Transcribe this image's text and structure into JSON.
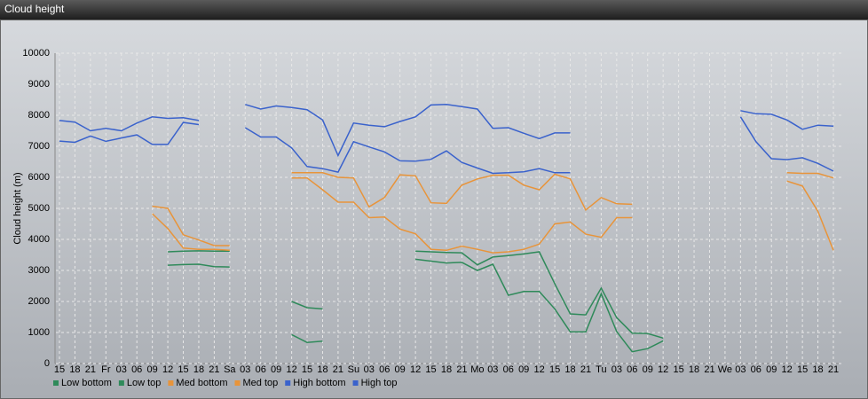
{
  "chart_data": {
    "type": "line",
    "title": "Cloud height",
    "y_label": "Cloud height (m)",
    "categories": [
      "15",
      "18",
      "21",
      "Fr",
      "03",
      "06",
      "09",
      "12",
      "15",
      "18",
      "21",
      "Sa",
      "03",
      "06",
      "09",
      "12",
      "15",
      "18",
      "21",
      "Su",
      "03",
      "06",
      "09",
      "12",
      "15",
      "18",
      "21",
      "Mo",
      "03",
      "06",
      "09",
      "12",
      "15",
      "18",
      "21",
      "Tu",
      "03",
      "06",
      "09",
      "12",
      "15",
      "18",
      "21",
      "We",
      "03",
      "06",
      "09",
      "12",
      "15",
      "18",
      "21"
    ],
    "ylim": [
      0,
      10000
    ],
    "yticks": [
      0,
      1000,
      2000,
      3000,
      4000,
      5000,
      6000,
      7000,
      8000,
      9000,
      10000
    ],
    "grid": true,
    "series": [
      {
        "name": "Low bottom",
        "color": "#2f8a5a",
        "values": [
          null,
          null,
          null,
          null,
          null,
          null,
          null,
          3170,
          3190,
          3200,
          3120,
          3110,
          null,
          null,
          null,
          930,
          680,
          720,
          null,
          null,
          null,
          null,
          null,
          3360,
          3300,
          3240,
          3260,
          3000,
          3200,
          2200,
          2320,
          2320,
          1760,
          1020,
          1020,
          2250,
          1030,
          380,
          480,
          730,
          null,
          null,
          null,
          null,
          null,
          null,
          null,
          null,
          null,
          null,
          null
        ]
      },
      {
        "name": "Low top",
        "color": "#2f8a5a",
        "values": [
          null,
          null,
          null,
          null,
          null,
          null,
          null,
          3600,
          3620,
          3630,
          3620,
          3620,
          null,
          null,
          null,
          2000,
          1800,
          1760,
          null,
          null,
          null,
          null,
          null,
          3620,
          3600,
          3580,
          3570,
          3180,
          3430,
          3480,
          3530,
          3600,
          2570,
          1600,
          1570,
          2430,
          1480,
          980,
          970,
          820,
          null,
          null,
          null,
          null,
          null,
          null,
          null,
          null,
          null,
          null,
          null
        ]
      },
      {
        "name": "Med bottom",
        "color": "#e8943a",
        "values": [
          null,
          null,
          null,
          null,
          null,
          null,
          4830,
          4350,
          3720,
          3680,
          3680,
          3650,
          null,
          null,
          null,
          5980,
          5980,
          5600,
          5200,
          5200,
          4700,
          4720,
          4330,
          4180,
          3680,
          3650,
          3780,
          3680,
          3570,
          3600,
          3680,
          3850,
          4500,
          4560,
          4170,
          4070,
          4700,
          4700,
          null,
          null,
          null,
          null,
          null,
          null,
          null,
          null,
          null,
          5880,
          5720,
          4900,
          3650
        ]
      },
      {
        "name": "Med top",
        "color": "#e8943a",
        "values": [
          null,
          null,
          null,
          null,
          null,
          null,
          5070,
          5000,
          4150,
          3980,
          3800,
          3800,
          null,
          null,
          null,
          6150,
          6150,
          6150,
          6000,
          5980,
          5050,
          5350,
          6080,
          6050,
          5180,
          5160,
          5750,
          5950,
          6070,
          6070,
          5750,
          5600,
          6100,
          5950,
          4950,
          5350,
          5150,
          5130,
          null,
          null,
          null,
          null,
          null,
          null,
          null,
          null,
          null,
          6150,
          6130,
          6130,
          5980
        ]
      },
      {
        "name": "High bottom",
        "color": "#3a62cc",
        "values": [
          7170,
          7130,
          7330,
          7160,
          7270,
          7370,
          7060,
          7060,
          7770,
          7700,
          null,
          null,
          7600,
          7300,
          7300,
          6950,
          6350,
          6280,
          6170,
          7150,
          6980,
          6820,
          6530,
          6520,
          6580,
          6850,
          6480,
          6300,
          6130,
          6150,
          6180,
          6280,
          6150,
          6150,
          null,
          null,
          null,
          null,
          null,
          null,
          null,
          null,
          null,
          null,
          7950,
          7150,
          6600,
          6570,
          6630,
          6450,
          6200
        ]
      },
      {
        "name": "High top",
        "color": "#3a62cc",
        "values": [
          7830,
          7780,
          7500,
          7580,
          7500,
          7750,
          7950,
          7900,
          7920,
          7830,
          null,
          null,
          8350,
          8200,
          8300,
          8250,
          8180,
          7850,
          6700,
          7750,
          7680,
          7630,
          7800,
          7950,
          8330,
          8350,
          8280,
          8200,
          7580,
          7600,
          7420,
          7250,
          7430,
          7430,
          null,
          null,
          null,
          null,
          null,
          null,
          null,
          null,
          null,
          null,
          8150,
          8050,
          8030,
          7850,
          7550,
          7680,
          7650
        ]
      }
    ]
  }
}
